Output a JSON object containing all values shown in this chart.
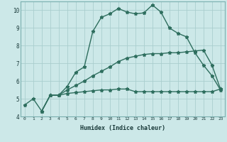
{
  "xlabel": "Humidex (Indice chaleur)",
  "bg_color": "#cce8e8",
  "line_color": "#2e6e5e",
  "grid_color": "#aacece",
  "ylim": [
    4,
    10.5
  ],
  "xlim": [
    -0.5,
    23.5
  ],
  "yticks": [
    4,
    5,
    6,
    7,
    8,
    9,
    10
  ],
  "xticks": [
    0,
    1,
    2,
    3,
    4,
    5,
    6,
    7,
    8,
    9,
    10,
    11,
    12,
    13,
    14,
    15,
    16,
    17,
    18,
    19,
    20,
    21,
    22,
    23
  ],
  "line1_x": [
    0,
    1,
    2,
    3,
    4,
    5,
    6,
    7,
    8,
    9,
    10,
    11,
    12,
    13,
    14,
    15,
    16,
    17,
    18,
    19,
    20,
    21,
    22,
    23
  ],
  "line1_y": [
    4.65,
    5.0,
    4.3,
    5.2,
    5.2,
    5.7,
    6.5,
    6.8,
    8.8,
    9.6,
    9.8,
    10.1,
    9.9,
    9.8,
    9.85,
    10.3,
    9.9,
    9.0,
    8.7,
    8.5,
    7.6,
    6.9,
    6.3,
    5.5
  ],
  "line2_x": [
    2,
    3,
    4,
    5,
    6,
    7,
    8,
    9,
    10,
    11,
    12,
    13,
    14,
    15,
    16,
    17,
    18,
    19,
    20,
    21,
    22,
    23
  ],
  "line2_y": [
    4.3,
    5.2,
    5.2,
    5.3,
    5.35,
    5.4,
    5.45,
    5.5,
    5.5,
    5.55,
    5.55,
    5.4,
    5.4,
    5.4,
    5.4,
    5.4,
    5.4,
    5.4,
    5.4,
    5.4,
    5.4,
    5.55
  ],
  "line3_x": [
    2,
    3,
    4,
    5,
    6,
    7,
    8,
    9,
    10,
    11,
    12,
    13,
    14,
    15,
    16,
    17,
    18,
    19,
    20,
    21,
    22,
    23
  ],
  "line3_y": [
    4.3,
    5.2,
    5.2,
    5.5,
    5.75,
    6.0,
    6.3,
    6.55,
    6.8,
    7.1,
    7.3,
    7.4,
    7.5,
    7.55,
    7.55,
    7.6,
    7.6,
    7.65,
    7.7,
    7.75,
    6.9,
    5.55
  ]
}
